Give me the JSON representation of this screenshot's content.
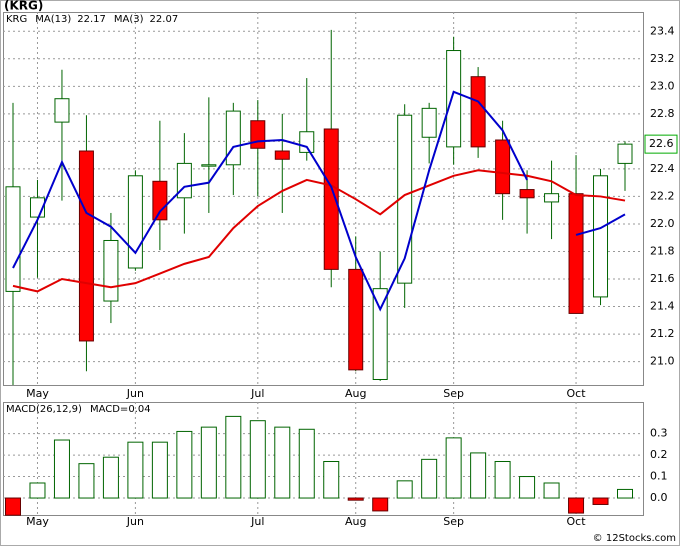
{
  "chart_data": [
    {
      "type": "candlestick",
      "title": "(KRG)",
      "name": "KRG",
      "categories": [
        null,
        "May",
        null,
        null,
        null,
        "Jun",
        null,
        null,
        null,
        null,
        "Jul",
        null,
        null,
        null,
        "Aug",
        null,
        null,
        null,
        "Sep",
        null,
        null,
        null,
        null,
        "Oct",
        null,
        null
      ],
      "open": [
        21.51,
        22.05,
        22.74,
        22.53,
        21.44,
        21.68,
        22.31,
        22.19,
        22.42,
        22.43,
        22.75,
        22.53,
        22.52,
        22.69,
        21.67,
        20.87,
        21.57,
        22.63,
        22.56,
        23.07,
        22.61,
        22.25,
        22.16,
        22.22,
        21.47,
        22.44
      ],
      "high": [
        22.88,
        22.32,
        23.12,
        22.79,
        22.08,
        22.39,
        22.75,
        22.66,
        22.92,
        22.88,
        22.9,
        22.8,
        23.06,
        23.41,
        21.91,
        21.8,
        22.87,
        22.88,
        23.36,
        23.14,
        22.75,
        22.39,
        22.46,
        22.5,
        22.4,
        22.6
      ],
      "low": [
        20.83,
        21.61,
        22.17,
        20.93,
        21.28,
        21.66,
        21.81,
        21.93,
        22.08,
        22.21,
        22.2,
        22.08,
        22.46,
        21.54,
        20.93,
        20.86,
        21.39,
        22.44,
        22.43,
        22.48,
        22.03,
        21.93,
        21.89,
        21.35,
        21.41,
        22.24
      ],
      "close": [
        22.27,
        22.19,
        22.91,
        21.15,
        21.88,
        22.35,
        22.03,
        22.44,
        22.43,
        22.82,
        22.55,
        22.47,
        22.67,
        21.67,
        20.94,
        21.53,
        22.79,
        22.84,
        23.26,
        22.56,
        22.22,
        22.19,
        22.22,
        21.35,
        22.35,
        22.58
      ],
      "up_color": "#006400",
      "down_color": "#ff0000",
      "series": [
        {
          "name": "MA(13)",
          "color": "#e00000",
          "legend_value": 22.17,
          "values": [
            21.55,
            21.51,
            21.6,
            21.57,
            21.54,
            21.57,
            21.64,
            21.71,
            21.76,
            21.97,
            22.13,
            22.24,
            22.32,
            22.28,
            22.18,
            22.07,
            22.21,
            22.28,
            22.35,
            22.39,
            22.37,
            22.35,
            22.31,
            22.21,
            22.2,
            22.17
          ]
        },
        {
          "name": "MA(3)",
          "color": "#0000cc",
          "legend_value": 22.07,
          "values": [
            21.68,
            22.03,
            22.45,
            22.08,
            21.98,
            21.79,
            22.09,
            22.27,
            22.3,
            22.56,
            22.6,
            22.61,
            22.56,
            22.27,
            21.76,
            21.38,
            21.75,
            22.39,
            22.96,
            22.89,
            22.68,
            22.32,
            null,
            21.92,
            21.97,
            22.07
          ]
        }
      ],
      "price_label": {
        "value": 22.58,
        "label": "22.6"
      },
      "ylim": [
        20.83,
        23.54
      ],
      "yticks": [
        {
          "value": 21,
          "label": "21.0"
        },
        {
          "value": 21.2,
          "label": "21.2"
        },
        {
          "value": 21.4,
          "label": "21.4"
        },
        {
          "value": 21.6,
          "label": "21.6"
        },
        {
          "value": 21.8,
          "label": "21.8"
        },
        {
          "value": 22,
          "label": "22.0"
        },
        {
          "value": 22.2,
          "label": "22.2"
        },
        {
          "value": 22.4,
          "label": "22.4"
        },
        {
          "value": 22.6,
          "label": "22.6"
        },
        {
          "value": 22.8,
          "label": "22.8"
        },
        {
          "value": 23,
          "label": "23.0"
        },
        {
          "value": 23.2,
          "label": "23.2"
        },
        {
          "value": 23.4,
          "label": "23.4"
        }
      ],
      "grid": true
    },
    {
      "type": "bar",
      "title": "MACD(26,12,9)",
      "value_name": "MACD=",
      "legend_value": 0.04,
      "values": [
        -0.08,
        0.07,
        0.27,
        0.16,
        0.19,
        0.26,
        0.26,
        0.31,
        0.33,
        0.38,
        0.36,
        0.33,
        0.32,
        0.17,
        -0.01,
        -0.06,
        0.08,
        0.18,
        0.28,
        0.21,
        0.17,
        0.1,
        0.07,
        -0.07,
        -0.03,
        0.04
      ],
      "up_color": "#006400",
      "down_color": "#ff0000",
      "ylim": [
        -0.079,
        0.447
      ],
      "yticks": [
        {
          "value": 0,
          "label": "0.0"
        },
        0.1,
        0.2,
        0.3
      ],
      "grid": true
    },
    {
      "type": "watermark",
      "title": "© 12Stocks.com"
    }
  ]
}
